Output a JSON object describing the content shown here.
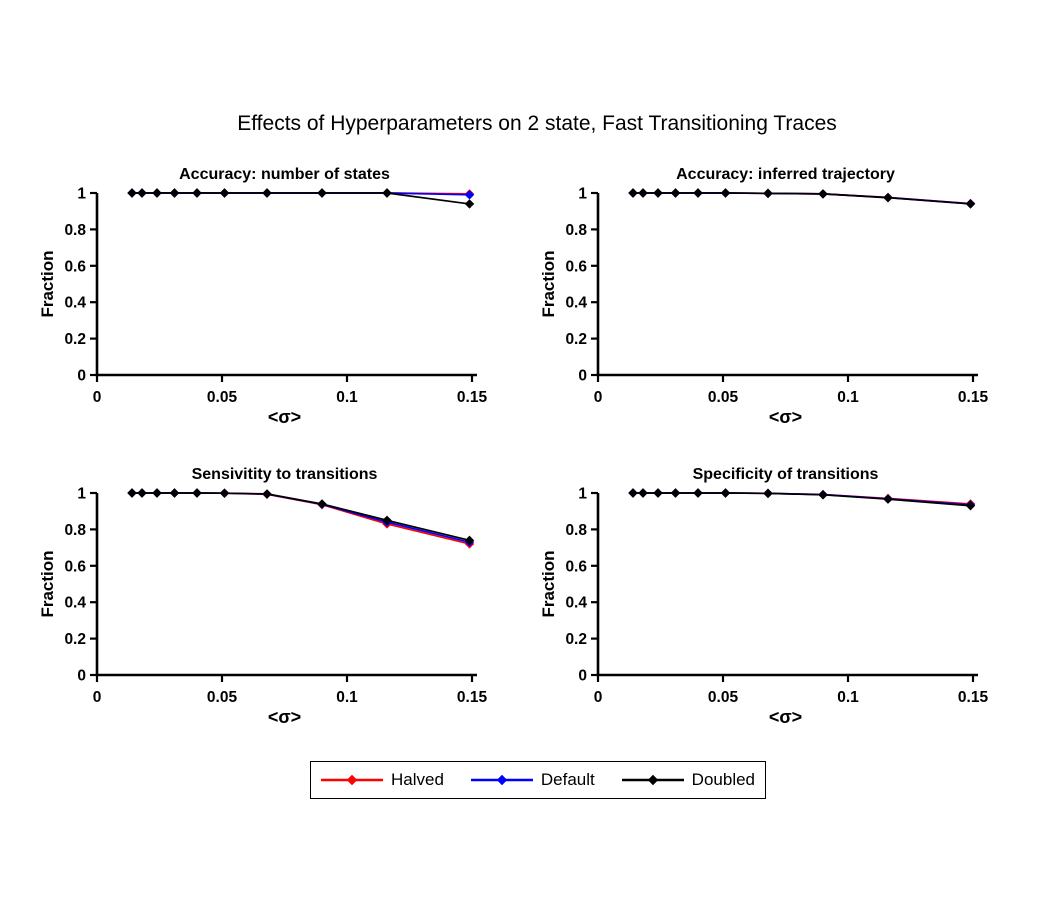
{
  "figure": {
    "title": "Effects of Hyperparameters on 2 state, Fast Transitioning Traces",
    "background_color": "#FFFFFF",
    "layout": "2x2 subplots, shared legend at bottom"
  },
  "legend": {
    "position": "bottom-center",
    "marker": "diamond",
    "entries": [
      {
        "label": "Halved",
        "color": "#FF0000"
      },
      {
        "label": "Default",
        "color": "#0000FF"
      },
      {
        "label": "Doubled",
        "color": "#000000"
      }
    ]
  },
  "chart_data": [
    {
      "type": "line",
      "title": "Accuracy: number of states",
      "xlabel": "<σ>",
      "ylabel": "Fraction",
      "xlim": [
        0,
        0.15
      ],
      "ylim": [
        0,
        1
      ],
      "grid": false,
      "xticks": [
        0,
        0.05,
        0.1,
        0.15
      ],
      "xtick_labels": [
        "0",
        "0.05",
        "0.1",
        "0.15"
      ],
      "yticks": [
        0,
        0.2,
        0.4,
        0.6,
        0.8,
        1
      ],
      "ytick_labels": [
        "0",
        "0.2",
        "0.4",
        "0.6",
        "0.8",
        "1"
      ],
      "x": [
        0.014,
        0.018,
        0.024,
        0.031,
        0.04,
        0.051,
        0.068,
        0.09,
        0.116,
        0.149
      ],
      "series": [
        {
          "name": "Halved",
          "color": "#FF0000",
          "values": [
            1,
            1,
            1,
            1,
            1,
            1,
            1,
            1,
            1,
            0.995
          ]
        },
        {
          "name": "Default",
          "color": "#0000FF",
          "values": [
            1,
            1,
            1,
            1,
            1,
            1,
            1,
            1,
            1,
            0.99
          ]
        },
        {
          "name": "Doubled",
          "color": "#000000",
          "values": [
            1,
            1,
            1,
            1,
            1,
            1,
            1,
            1,
            1,
            0.94
          ]
        }
      ]
    },
    {
      "type": "line",
      "title": "Accuracy: inferred trajectory",
      "xlabel": "<σ>",
      "ylabel": "Fraction",
      "xlim": [
        0,
        0.15
      ],
      "ylim": [
        0,
        1
      ],
      "grid": false,
      "xticks": [
        0,
        0.05,
        0.1,
        0.15
      ],
      "xtick_labels": [
        "0",
        "0.05",
        "0.1",
        "0.15"
      ],
      "yticks": [
        0,
        0.2,
        0.4,
        0.6,
        0.8,
        1
      ],
      "ytick_labels": [
        "0",
        "0.2",
        "0.4",
        "0.6",
        "0.8",
        "1"
      ],
      "x": [
        0.014,
        0.018,
        0.024,
        0.031,
        0.04,
        0.051,
        0.068,
        0.09,
        0.116,
        0.149
      ],
      "series": [
        {
          "name": "Halved",
          "color": "#FF0000",
          "values": [
            1,
            1,
            1,
            1,
            1,
            1,
            0.998,
            0.995,
            0.976,
            0.942
          ]
        },
        {
          "name": "Default",
          "color": "#0000FF",
          "values": [
            1,
            1,
            1,
            1,
            1,
            1,
            0.998,
            0.995,
            0.975,
            0.941
          ]
        },
        {
          "name": "Doubled",
          "color": "#000000",
          "values": [
            1,
            1,
            1,
            1,
            1,
            1,
            0.998,
            0.995,
            0.974,
            0.94
          ]
        }
      ]
    },
    {
      "type": "line",
      "title": "Sensivitity to transitions",
      "xlabel": "<σ>",
      "ylabel": "Fraction",
      "xlim": [
        0,
        0.15
      ],
      "ylim": [
        0,
        1
      ],
      "grid": false,
      "xticks": [
        0,
        0.05,
        0.1,
        0.15
      ],
      "xtick_labels": [
        "0",
        "0.05",
        "0.1",
        "0.15"
      ],
      "yticks": [
        0,
        0.2,
        0.4,
        0.6,
        0.8,
        1
      ],
      "ytick_labels": [
        "0",
        "0.2",
        "0.4",
        "0.6",
        "0.8",
        "1"
      ],
      "x": [
        0.014,
        0.018,
        0.024,
        0.031,
        0.04,
        0.051,
        0.068,
        0.09,
        0.116,
        0.149
      ],
      "series": [
        {
          "name": "Halved",
          "color": "#FF0000",
          "values": [
            1,
            1,
            1,
            1,
            1,
            0.999,
            0.993,
            0.936,
            0.83,
            0.72
          ]
        },
        {
          "name": "Default",
          "color": "#0000FF",
          "values": [
            1,
            1,
            1,
            1,
            1,
            0.999,
            0.994,
            0.938,
            0.84,
            0.73
          ]
        },
        {
          "name": "Doubled",
          "color": "#000000",
          "values": [
            1,
            1,
            1,
            1,
            1,
            0.999,
            0.995,
            0.94,
            0.85,
            0.74
          ]
        }
      ]
    },
    {
      "type": "line",
      "title": "Specificity of transitions",
      "xlabel": "<σ>",
      "ylabel": "Fraction",
      "xlim": [
        0,
        0.15
      ],
      "ylim": [
        0,
        1
      ],
      "grid": false,
      "xticks": [
        0,
        0.05,
        0.1,
        0.15
      ],
      "xtick_labels": [
        "0",
        "0.05",
        "0.1",
        "0.15"
      ],
      "yticks": [
        0,
        0.2,
        0.4,
        0.6,
        0.8,
        1
      ],
      "ytick_labels": [
        "0",
        "0.2",
        "0.4",
        "0.6",
        "0.8",
        "1"
      ],
      "x": [
        0.014,
        0.018,
        0.024,
        0.031,
        0.04,
        0.051,
        0.068,
        0.09,
        0.116,
        0.149
      ],
      "series": [
        {
          "name": "Halved",
          "color": "#FF0000",
          "values": [
            1,
            1,
            1,
            1,
            1,
            1,
            0.998,
            0.992,
            0.97,
            0.94
          ]
        },
        {
          "name": "Default",
          "color": "#0000FF",
          "values": [
            1,
            1,
            1,
            1,
            1,
            1,
            0.998,
            0.991,
            0.968,
            0.935
          ]
        },
        {
          "name": "Doubled",
          "color": "#000000",
          "values": [
            1,
            1,
            1,
            1,
            1,
            1,
            0.998,
            0.99,
            0.966,
            0.93
          ]
        }
      ]
    }
  ]
}
